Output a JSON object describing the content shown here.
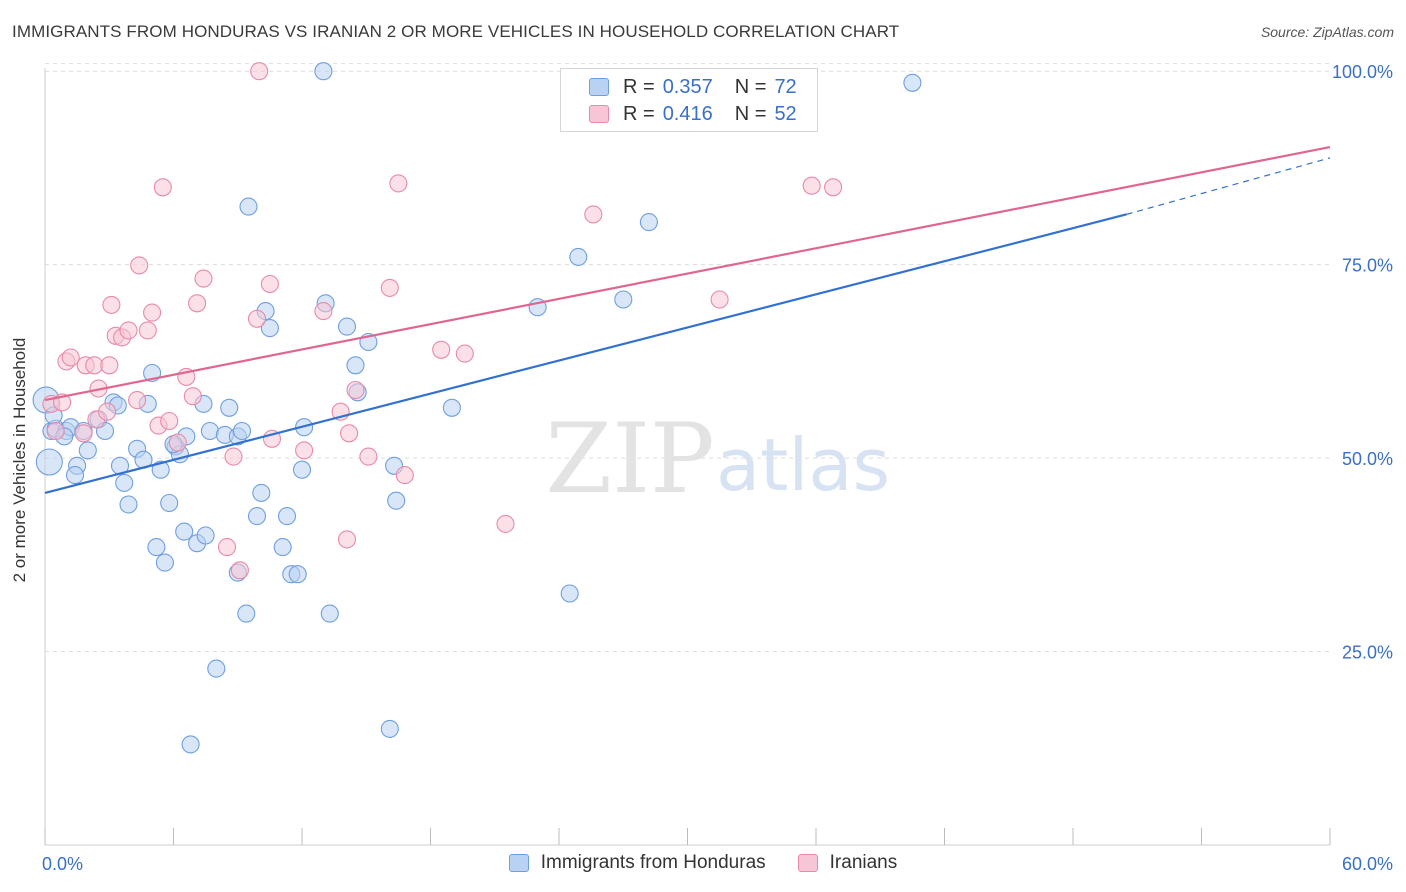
{
  "chart_data": {
    "type": "scatter",
    "title": "IMMIGRANTS FROM HONDURAS VS IRANIAN 2 OR MORE VEHICLES IN HOUSEHOLD CORRELATION CHART",
    "source": "Source: ZipAtlas.com",
    "watermark": {
      "part1": "ZIP",
      "part2": "atlas"
    },
    "xlabel": "",
    "ylabel": "2 or more Vehicles in Household",
    "xlim": [
      0,
      60
    ],
    "ylim": [
      0,
      103
    ],
    "x_tick_labels": [
      "0.0%",
      "60.0%"
    ],
    "y_ticks": [
      25,
      50,
      75,
      100
    ],
    "y_tick_labels": [
      "25.0%",
      "50.0%",
      "75.0%",
      "100.0%"
    ],
    "grid": true,
    "legend_position": "top-center",
    "stats": [
      {
        "r_label": "R =",
        "r_value": "0.357",
        "n_label": "N =",
        "n_value": "72"
      },
      {
        "r_label": "R =",
        "r_value": "0.416",
        "n_label": "N =",
        "n_value": "52"
      }
    ],
    "series": [
      {
        "name": "Immigrants from Honduras",
        "color": "#6e9fe0",
        "fill": "#b9d1f3",
        "line_color": "#3371d0",
        "trend": {
          "x0": 0,
          "y0": 45.5,
          "x1": 50.5,
          "y1": 81.5,
          "dash_to_x": 60,
          "dash_to_y": 88.8
        },
        "points": [
          [
            0.05,
            57.5
          ],
          [
            0.2,
            49.5
          ],
          [
            0.3,
            53.5
          ],
          [
            0.5,
            53.8
          ],
          [
            1.0,
            53.5
          ],
          [
            1.2,
            54.0
          ],
          [
            1.8,
            53.5
          ],
          [
            1.5,
            49.0
          ],
          [
            1.4,
            47.8
          ],
          [
            2.0,
            51.0
          ],
          [
            2.5,
            55.0
          ],
          [
            2.8,
            53.5
          ],
          [
            3.2,
            57.2
          ],
          [
            3.4,
            56.8
          ],
          [
            3.5,
            49.0
          ],
          [
            3.7,
            46.8
          ],
          [
            3.9,
            44.0
          ],
          [
            4.3,
            51.2
          ],
          [
            4.6,
            49.8
          ],
          [
            4.8,
            57.0
          ],
          [
            5.0,
            61.0
          ],
          [
            5.2,
            38.5
          ],
          [
            5.4,
            48.5
          ],
          [
            5.6,
            36.5
          ],
          [
            5.8,
            44.2
          ],
          [
            6.1,
            51.5
          ],
          [
            6.3,
            50.5
          ],
          [
            6.6,
            52.8
          ],
          [
            6.5,
            40.5
          ],
          [
            6.8,
            13.0
          ],
          [
            7.1,
            39.0
          ],
          [
            7.4,
            57.0
          ],
          [
            7.5,
            40.0
          ],
          [
            7.7,
            53.5
          ],
          [
            8.0,
            22.8
          ],
          [
            8.4,
            53.0
          ],
          [
            8.6,
            56.5
          ],
          [
            9.0,
            52.8
          ],
          [
            9.0,
            35.2
          ],
          [
            9.2,
            53.5
          ],
          [
            9.4,
            29.9
          ],
          [
            9.5,
            82.5
          ],
          [
            9.9,
            42.5
          ],
          [
            10.1,
            45.5
          ],
          [
            10.3,
            69.0
          ],
          [
            10.5,
            66.8
          ],
          [
            11.1,
            38.5
          ],
          [
            11.3,
            42.5
          ],
          [
            11.5,
            35.0
          ],
          [
            11.8,
            35.0
          ],
          [
            12.0,
            48.5
          ],
          [
            12.1,
            54.0
          ],
          [
            13.0,
            100.0
          ],
          [
            13.1,
            70.0
          ],
          [
            13.3,
            29.9
          ],
          [
            14.1,
            67.0
          ],
          [
            14.5,
            62.0
          ],
          [
            14.6,
            58.5
          ],
          [
            15.1,
            65.0
          ],
          [
            16.1,
            15.0
          ],
          [
            16.3,
            49.0
          ],
          [
            16.4,
            44.5
          ],
          [
            19.0,
            56.5
          ],
          [
            23.0,
            69.5
          ],
          [
            24.5,
            32.5
          ],
          [
            24.9,
            76.0
          ],
          [
            27.0,
            70.5
          ],
          [
            28.2,
            80.5
          ],
          [
            40.5,
            98.5
          ],
          [
            0.4,
            55.5
          ],
          [
            0.9,
            52.8
          ],
          [
            6.0,
            51.8
          ]
        ]
      },
      {
        "name": "Iranians",
        "color": "#e88aa9",
        "fill": "#f7c6d6",
        "line_color": "#e0668f",
        "trend": {
          "x0": 0,
          "y0": 57.5,
          "x1": 60,
          "y1": 90.2
        },
        "points": [
          [
            0.3,
            57.0
          ],
          [
            0.5,
            53.5
          ],
          [
            0.8,
            57.2
          ],
          [
            1.0,
            62.5
          ],
          [
            1.2,
            63.0
          ],
          [
            1.8,
            53.2
          ],
          [
            1.9,
            62.0
          ],
          [
            2.3,
            62.0
          ],
          [
            2.4,
            55.0
          ],
          [
            2.5,
            59.0
          ],
          [
            2.9,
            56.0
          ],
          [
            3.0,
            62.0
          ],
          [
            3.1,
            69.8
          ],
          [
            3.3,
            65.8
          ],
          [
            3.6,
            65.6
          ],
          [
            3.9,
            66.5
          ],
          [
            4.3,
            57.5
          ],
          [
            4.4,
            74.9
          ],
          [
            4.8,
            66.5
          ],
          [
            5.0,
            68.8
          ],
          [
            5.3,
            54.2
          ],
          [
            5.5,
            85.0
          ],
          [
            5.8,
            54.8
          ],
          [
            6.2,
            52.0
          ],
          [
            6.6,
            60.5
          ],
          [
            6.9,
            58.0
          ],
          [
            7.1,
            70.0
          ],
          [
            7.4,
            73.2
          ],
          [
            8.5,
            38.5
          ],
          [
            8.8,
            50.2
          ],
          [
            9.1,
            35.5
          ],
          [
            9.9,
            68.0
          ],
          [
            10.0,
            100.0
          ],
          [
            10.5,
            72.5
          ],
          [
            10.6,
            52.5
          ],
          [
            12.1,
            51.0
          ],
          [
            13.0,
            69.0
          ],
          [
            13.8,
            56.0
          ],
          [
            14.1,
            39.5
          ],
          [
            14.2,
            53.2
          ],
          [
            14.5,
            58.8
          ],
          [
            15.1,
            50.2
          ],
          [
            16.1,
            72.0
          ],
          [
            16.5,
            85.5
          ],
          [
            16.8,
            47.8
          ],
          [
            18.5,
            64.0
          ],
          [
            19.6,
            63.5
          ],
          [
            21.5,
            41.5
          ],
          [
            25.6,
            81.5
          ],
          [
            31.5,
            70.5
          ],
          [
            35.8,
            85.2
          ],
          [
            36.8,
            85.0
          ]
        ]
      }
    ]
  }
}
